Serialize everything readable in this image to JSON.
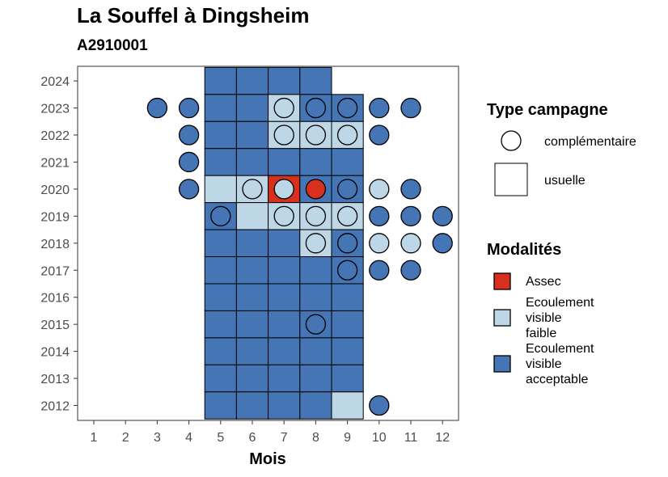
{
  "chart_data": {
    "type": "heatmap",
    "title": "La Souffel à Dingsheim",
    "subtitle": "A2910001",
    "xlabel": "Mois",
    "ylabel": "",
    "x_ticks": [
      1,
      2,
      3,
      4,
      5,
      6,
      7,
      8,
      9,
      10,
      11,
      12
    ],
    "y_ticks": [
      2012,
      2013,
      2014,
      2015,
      2016,
      2017,
      2018,
      2019,
      2020,
      2021,
      2022,
      2023,
      2024
    ],
    "grid": false,
    "legend_position": "right",
    "legend_type": {
      "title": "Type campagne",
      "items": [
        {
          "label": "complémentaire",
          "shape": "circle"
        },
        {
          "label": "usuelle",
          "shape": "square"
        }
      ]
    },
    "legend_modalites": {
      "title": "Modalités",
      "items": [
        {
          "label": "Assec",
          "lines": [
            "Assec"
          ],
          "color": "#d7301f"
        },
        {
          "label": "Ecoulement visible faible",
          "lines": [
            "Ecoulement",
            "visible",
            "faible"
          ],
          "color": "#bdd7e7"
        },
        {
          "label": "Ecoulement visible acceptable",
          "lines": [
            "Ecoulement",
            "visible",
            "acceptable"
          ],
          "color": "#4575b4"
        }
      ]
    },
    "squares": [
      {
        "year": 2024,
        "month": 5,
        "modalite": "Ecoulement visible acceptable"
      },
      {
        "year": 2024,
        "month": 6,
        "modalite": "Ecoulement visible acceptable"
      },
      {
        "year": 2024,
        "month": 7,
        "modalite": "Ecoulement visible acceptable"
      },
      {
        "year": 2024,
        "month": 8,
        "modalite": "Ecoulement visible acceptable"
      },
      {
        "year": 2023,
        "month": 5,
        "modalite": "Ecoulement visible acceptable"
      },
      {
        "year": 2023,
        "month": 6,
        "modalite": "Ecoulement visible acceptable"
      },
      {
        "year": 2023,
        "month": 7,
        "modalite": "Ecoulement visible faible"
      },
      {
        "year": 2023,
        "month": 8,
        "modalite": "Ecoulement visible acceptable"
      },
      {
        "year": 2023,
        "month": 9,
        "modalite": "Ecoulement visible acceptable"
      },
      {
        "year": 2022,
        "month": 5,
        "modalite": "Ecoulement visible acceptable"
      },
      {
        "year": 2022,
        "month": 6,
        "modalite": "Ecoulement visible acceptable"
      },
      {
        "year": 2022,
        "month": 7,
        "modalite": "Ecoulement visible faible"
      },
      {
        "year": 2022,
        "month": 8,
        "modalite": "Ecoulement visible faible"
      },
      {
        "year": 2022,
        "month": 9,
        "modalite": "Ecoulement visible faible"
      },
      {
        "year": 2021,
        "month": 5,
        "modalite": "Ecoulement visible acceptable"
      },
      {
        "year": 2021,
        "month": 6,
        "modalite": "Ecoulement visible acceptable"
      },
      {
        "year": 2021,
        "month": 7,
        "modalite": "Ecoulement visible acceptable"
      },
      {
        "year": 2021,
        "month": 8,
        "modalite": "Ecoulement visible acceptable"
      },
      {
        "year": 2021,
        "month": 9,
        "modalite": "Ecoulement visible acceptable"
      },
      {
        "year": 2020,
        "month": 5,
        "modalite": "Ecoulement visible faible"
      },
      {
        "year": 2020,
        "month": 6,
        "modalite": "Ecoulement visible faible"
      },
      {
        "year": 2020,
        "month": 7,
        "modalite": "Assec"
      },
      {
        "year": 2020,
        "month": 8,
        "modalite": "Ecoulement visible acceptable"
      },
      {
        "year": 2020,
        "month": 9,
        "modalite": "Ecoulement visible acceptable"
      },
      {
        "year": 2019,
        "month": 5,
        "modalite": "Ecoulement visible acceptable"
      },
      {
        "year": 2019,
        "month": 6,
        "modalite": "Ecoulement visible faible"
      },
      {
        "year": 2019,
        "month": 7,
        "modalite": "Ecoulement visible faible"
      },
      {
        "year": 2019,
        "month": 8,
        "modalite": "Ecoulement visible faible"
      },
      {
        "year": 2019,
        "month": 9,
        "modalite": "Ecoulement visible faible"
      },
      {
        "year": 2018,
        "month": 5,
        "modalite": "Ecoulement visible acceptable"
      },
      {
        "year": 2018,
        "month": 6,
        "modalite": "Ecoulement visible acceptable"
      },
      {
        "year": 2018,
        "month": 7,
        "modalite": "Ecoulement visible acceptable"
      },
      {
        "year": 2018,
        "month": 8,
        "modalite": "Ecoulement visible faible"
      },
      {
        "year": 2018,
        "month": 9,
        "modalite": "Ecoulement visible acceptable"
      },
      {
        "year": 2017,
        "month": 5,
        "modalite": "Ecoulement visible acceptable"
      },
      {
        "year": 2017,
        "month": 6,
        "modalite": "Ecoulement visible acceptable"
      },
      {
        "year": 2017,
        "month": 7,
        "modalite": "Ecoulement visible acceptable"
      },
      {
        "year": 2017,
        "month": 8,
        "modalite": "Ecoulement visible acceptable"
      },
      {
        "year": 2017,
        "month": 9,
        "modalite": "Ecoulement visible acceptable"
      },
      {
        "year": 2016,
        "month": 5,
        "modalite": "Ecoulement visible acceptable"
      },
      {
        "year": 2016,
        "month": 6,
        "modalite": "Ecoulement visible acceptable"
      },
      {
        "year": 2016,
        "month": 7,
        "modalite": "Ecoulement visible acceptable"
      },
      {
        "year": 2016,
        "month": 8,
        "modalite": "Ecoulement visible acceptable"
      },
      {
        "year": 2016,
        "month": 9,
        "modalite": "Ecoulement visible acceptable"
      },
      {
        "year": 2015,
        "month": 5,
        "modalite": "Ecoulement visible acceptable"
      },
      {
        "year": 2015,
        "month": 6,
        "modalite": "Ecoulement visible acceptable"
      },
      {
        "year": 2015,
        "month": 7,
        "modalite": "Ecoulement visible acceptable"
      },
      {
        "year": 2015,
        "month": 8,
        "modalite": "Ecoulement visible acceptable"
      },
      {
        "year": 2015,
        "month": 9,
        "modalite": "Ecoulement visible acceptable"
      },
      {
        "year": 2014,
        "month": 5,
        "modalite": "Ecoulement visible acceptable"
      },
      {
        "year": 2014,
        "month": 6,
        "modalite": "Ecoulement visible acceptable"
      },
      {
        "year": 2014,
        "month": 7,
        "modalite": "Ecoulement visible acceptable"
      },
      {
        "year": 2014,
        "month": 8,
        "modalite": "Ecoulement visible acceptable"
      },
      {
        "year": 2014,
        "month": 9,
        "modalite": "Ecoulement visible acceptable"
      },
      {
        "year": 2013,
        "month": 5,
        "modalite": "Ecoulement visible acceptable"
      },
      {
        "year": 2013,
        "month": 6,
        "modalite": "Ecoulement visible acceptable"
      },
      {
        "year": 2013,
        "month": 7,
        "modalite": "Ecoulement visible acceptable"
      },
      {
        "year": 2013,
        "month": 8,
        "modalite": "Ecoulement visible acceptable"
      },
      {
        "year": 2013,
        "month": 9,
        "modalite": "Ecoulement visible acceptable"
      },
      {
        "year": 2012,
        "month": 5,
        "modalite": "Ecoulement visible acceptable"
      },
      {
        "year": 2012,
        "month": 6,
        "modalite": "Ecoulement visible acceptable"
      },
      {
        "year": 2012,
        "month": 7,
        "modalite": "Ecoulement visible acceptable"
      },
      {
        "year": 2012,
        "month": 8,
        "modalite": "Ecoulement visible acceptable"
      },
      {
        "year": 2012,
        "month": 9,
        "modalite": "Ecoulement visible faible"
      }
    ],
    "circles": [
      {
        "year": 2023,
        "month": 3,
        "modalite": "Ecoulement visible acceptable"
      },
      {
        "year": 2023,
        "month": 4,
        "modalite": "Ecoulement visible acceptable"
      },
      {
        "year": 2023,
        "month": 7,
        "modalite": "Ecoulement visible faible"
      },
      {
        "year": 2023,
        "month": 8,
        "modalite": "Ecoulement visible acceptable"
      },
      {
        "year": 2023,
        "month": 9,
        "modalite": "Ecoulement visible acceptable"
      },
      {
        "year": 2023,
        "month": 10,
        "modalite": "Ecoulement visible acceptable"
      },
      {
        "year": 2023,
        "month": 11,
        "modalite": "Ecoulement visible acceptable"
      },
      {
        "year": 2022,
        "month": 4,
        "modalite": "Ecoulement visible acceptable"
      },
      {
        "year": 2022,
        "month": 7,
        "modalite": "Ecoulement visible faible"
      },
      {
        "year": 2022,
        "month": 8,
        "modalite": "Ecoulement visible faible"
      },
      {
        "year": 2022,
        "month": 9,
        "modalite": "Ecoulement visible faible"
      },
      {
        "year": 2022,
        "month": 10,
        "modalite": "Ecoulement visible acceptable"
      },
      {
        "year": 2021,
        "month": 4,
        "modalite": "Ecoulement visible acceptable"
      },
      {
        "year": 2020,
        "month": 4,
        "modalite": "Ecoulement visible acceptable"
      },
      {
        "year": 2020,
        "month": 6,
        "modalite": "Ecoulement visible faible"
      },
      {
        "year": 2020,
        "month": 7,
        "modalite": "Ecoulement visible faible"
      },
      {
        "year": 2020,
        "month": 8,
        "modalite": "Assec"
      },
      {
        "year": 2020,
        "month": 9,
        "modalite": "Ecoulement visible acceptable"
      },
      {
        "year": 2020,
        "month": 10,
        "modalite": "Ecoulement visible faible"
      },
      {
        "year": 2020,
        "month": 11,
        "modalite": "Ecoulement visible acceptable"
      },
      {
        "year": 2019,
        "month": 5,
        "modalite": "Ecoulement visible acceptable"
      },
      {
        "year": 2019,
        "month": 7,
        "modalite": "Ecoulement visible faible"
      },
      {
        "year": 2019,
        "month": 8,
        "modalite": "Ecoulement visible faible"
      },
      {
        "year": 2019,
        "month": 9,
        "modalite": "Ecoulement visible faible"
      },
      {
        "year": 2019,
        "month": 10,
        "modalite": "Ecoulement visible acceptable"
      },
      {
        "year": 2019,
        "month": 11,
        "modalite": "Ecoulement visible acceptable"
      },
      {
        "year": 2019,
        "month": 12,
        "modalite": "Ecoulement visible acceptable"
      },
      {
        "year": 2018,
        "month": 8,
        "modalite": "Ecoulement visible faible"
      },
      {
        "year": 2018,
        "month": 9,
        "modalite": "Ecoulement visible acceptable"
      },
      {
        "year": 2018,
        "month": 10,
        "modalite": "Ecoulement visible faible"
      },
      {
        "year": 2018,
        "month": 11,
        "modalite": "Ecoulement visible faible"
      },
      {
        "year": 2018,
        "month": 12,
        "modalite": "Ecoulement visible acceptable"
      },
      {
        "year": 2017,
        "month": 9,
        "modalite": "Ecoulement visible acceptable"
      },
      {
        "year": 2017,
        "month": 10,
        "modalite": "Ecoulement visible acceptable"
      },
      {
        "year": 2017,
        "month": 11,
        "modalite": "Ecoulement visible acceptable"
      },
      {
        "year": 2015,
        "month": 8,
        "modalite": "Ecoulement visible acceptable"
      },
      {
        "year": 2012,
        "month": 10,
        "modalite": "Ecoulement visible acceptable"
      }
    ]
  }
}
